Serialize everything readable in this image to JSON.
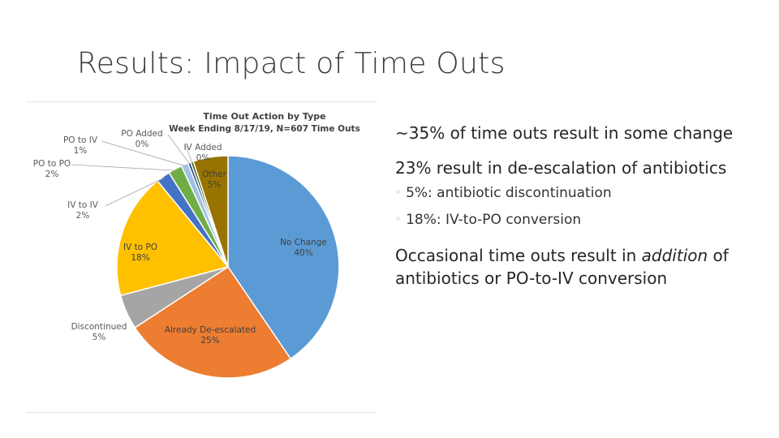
{
  "slide": {
    "title": "Results: Impact of Time Outs"
  },
  "bullets": {
    "main1": "~35% of time outs result in some change",
    "main2": "23% result in de-escalation of antibiotics",
    "sub1": "5%: antibiotic discontinuation",
    "sub2": "18%: IV-to-PO conversion",
    "main3_before": "Occasional time outs result in ",
    "main3_em": "addition",
    "main3_after": " of antibiotics or PO-to-IV conversion"
  },
  "chart_data": {
    "type": "pie",
    "title": "Time Out Action by Type",
    "subtitle": "Week Ending 8/17/19,  N=607 Time Outs",
    "start_angle_deg": 0,
    "direction": "clockwise",
    "slices": [
      {
        "label": "No Change",
        "value": 40,
        "percent_label": "40%",
        "color": "#5b9bd5"
      },
      {
        "label": "Already De-escalated",
        "value": 25,
        "percent_label": "25%",
        "color": "#ed7d31"
      },
      {
        "label": "Discontinued",
        "value": 5,
        "percent_label": "5%",
        "color": "#a5a5a5"
      },
      {
        "label": "IV to PO",
        "value": 18,
        "percent_label": "18%",
        "color": "#ffc000"
      },
      {
        "label": "IV to IV",
        "value": 2,
        "percent_label": "2%",
        "color": "#4472c4"
      },
      {
        "label": "PO to PO",
        "value": 2,
        "percent_label": "2%",
        "color": "#70ad47"
      },
      {
        "label": "PO to IV",
        "value": 1,
        "percent_label": "1%",
        "color": "#9dc3e6"
      },
      {
        "label": "PO Added",
        "value": 0.4,
        "percent_label": "0%",
        "color": "#264478"
      },
      {
        "label": "IV Added",
        "value": 0.4,
        "percent_label": "0%",
        "color": "#43682b"
      },
      {
        "label": "Other",
        "value": 5,
        "percent_label": "5%",
        "color": "#997300"
      }
    ]
  }
}
